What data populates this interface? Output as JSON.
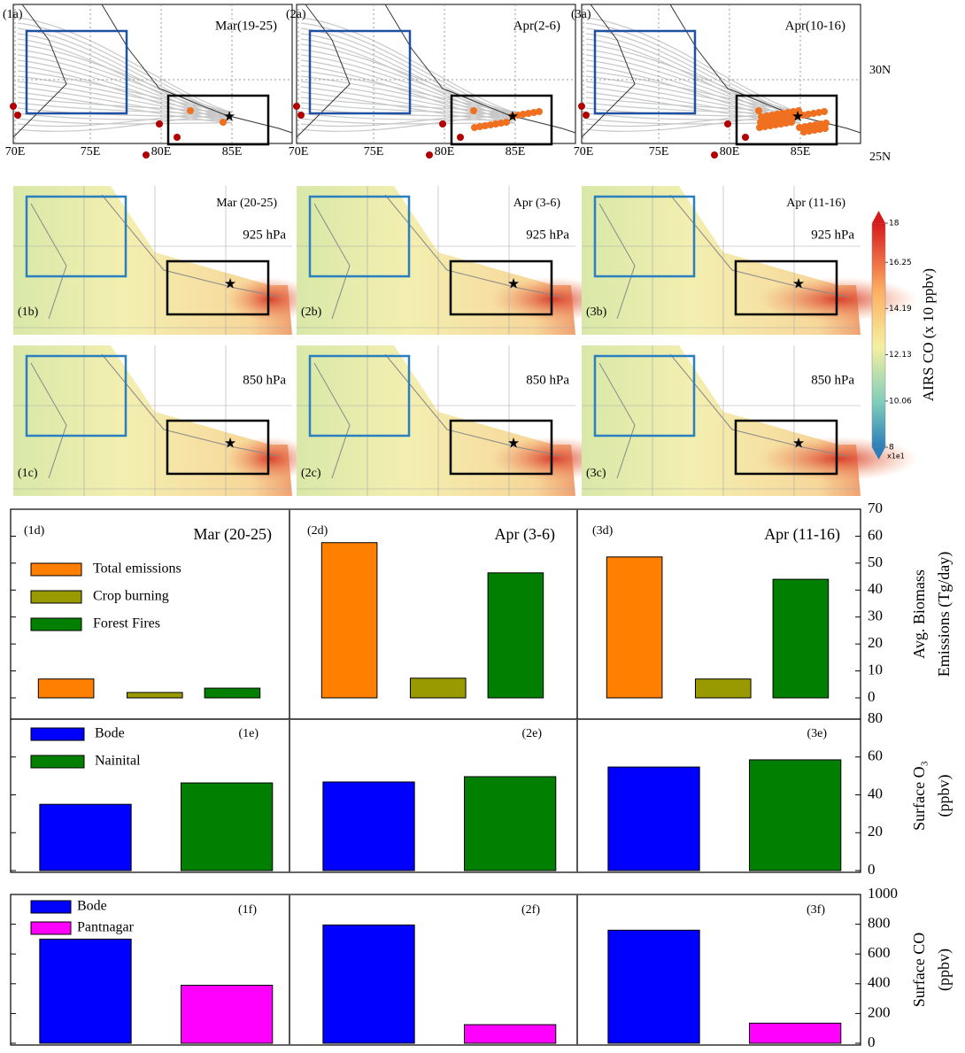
{
  "maps": {
    "row_a": {
      "panels": [
        {
          "label": "(1a)",
          "title": "Mar(19-25)"
        },
        {
          "label": "(2a)",
          "title": "Apr(2-6)"
        },
        {
          "label": "(3a)",
          "title": "Apr(10-16)"
        }
      ],
      "lon_labels": [
        "70E",
        "75E",
        "80E",
        "85E"
      ],
      "lat_labels": [
        "30N",
        "25N"
      ]
    },
    "row_bc": {
      "panels": [
        {
          "label_b": "(1b)",
          "label_c": "(1c)",
          "title": "Mar (20-25)"
        },
        {
          "label_b": "(2b)",
          "label_c": "(2c)",
          "title": "Apr (3-6)"
        },
        {
          "label_b": "(3b)",
          "label_c": "(3c)",
          "title": "Apr (11-16)"
        }
      ],
      "levels": [
        "925 hPa",
        "850 hPa"
      ]
    },
    "colorbar": {
      "label": "AIRS CO (x 10 ppbv)",
      "lim": [
        8,
        18
      ],
      "ticks": [
        8,
        10.06,
        12.13,
        14.19,
        16.25,
        18
      ],
      "exponent": "x1e1"
    }
  },
  "chart_data": [
    {
      "type": "bar",
      "categories": [
        "(1d)",
        "(2d)",
        "(3d)"
      ],
      "panel_titles": [
        "Mar (20-25)",
        "Apr (3-6)",
        "Apr (11-16)"
      ],
      "series": [
        {
          "name": "Total emissions",
          "color": "#ff8000",
          "values": [
            7,
            57.6,
            52.3
          ]
        },
        {
          "name": "Crop burning",
          "color": "#999900",
          "values": [
            2,
            7.3,
            7
          ]
        },
        {
          "name": "Forest Fires",
          "color": "#007f00",
          "values": [
            3.6,
            46.4,
            44
          ]
        }
      ],
      "ylim": [
        0,
        70
      ],
      "yticks": [
        0,
        10,
        20,
        30,
        40,
        50,
        60,
        70
      ],
      "ylabel": [
        "Avg. Biomass",
        "Emissions (Tg/day)"
      ]
    },
    {
      "type": "bar",
      "categories": [
        "(1e)",
        "(2e)",
        "(3e)"
      ],
      "series": [
        {
          "name": "Bode",
          "color": "#0000ff",
          "values": [
            35,
            46.8,
            54.7
          ]
        },
        {
          "name": "Nainital",
          "color": "#007f00",
          "values": [
            46.3,
            49.6,
            58.5
          ]
        }
      ],
      "ylim": [
        0,
        80
      ],
      "yticks": [
        0,
        20,
        40,
        60,
        80
      ],
      "ylabel": [
        "Surface O₃",
        "(ppbv)"
      ]
    },
    {
      "type": "bar",
      "categories": [
        "(1f)",
        "(2f)",
        "(3f)"
      ],
      "series": [
        {
          "name": "Bode",
          "color": "#0000ff",
          "values": [
            700,
            795,
            760
          ]
        },
        {
          "name": "Pantnagar",
          "color": "#ff00ff",
          "values": [
            390,
            125,
            135
          ]
        }
      ],
      "ylim": [
        0,
        1000
      ],
      "yticks": [
        0,
        200,
        400,
        600,
        800,
        1000
      ],
      "ylabel": [
        "Surface CO",
        "(ppbv)"
      ]
    }
  ]
}
